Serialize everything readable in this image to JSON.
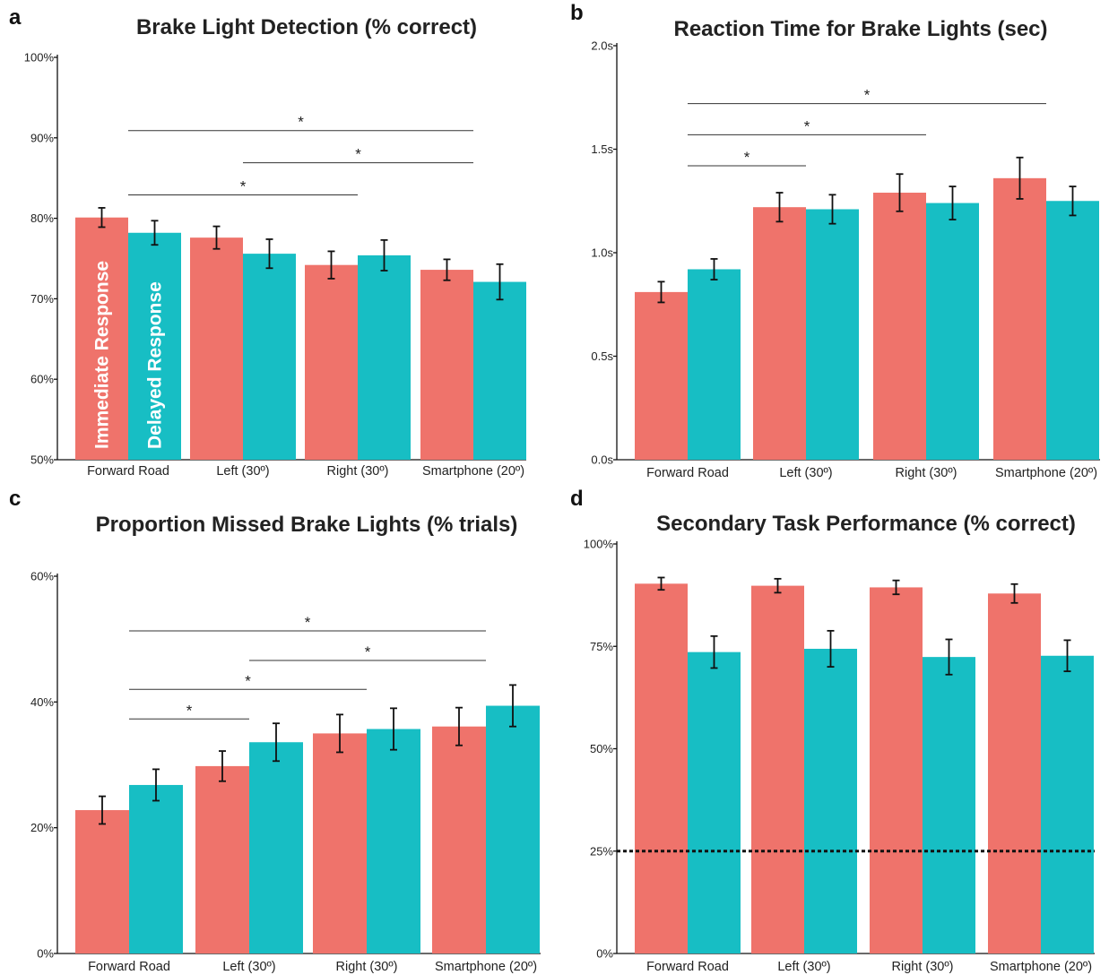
{
  "colors": {
    "immediate": "#ef736b",
    "delayed": "#17bec4"
  },
  "chart_data": [
    {
      "id": "a",
      "type": "bar",
      "panel_letter": "a",
      "title": "Brake Light Detection (% correct)",
      "categories": [
        "Forward Road",
        "Left (30º)",
        "Right (30º)",
        "Smartphone (20º)"
      ],
      "series": [
        {
          "name": "Immediate Response",
          "values": [
            80.1,
            77.6,
            74.2,
            73.6
          ],
          "error": [
            1.2,
            1.4,
            1.7,
            1.3
          ]
        },
        {
          "name": "Delayed Response",
          "values": [
            78.2,
            75.6,
            75.4,
            72.1
          ],
          "error": [
            1.5,
            1.8,
            1.9,
            2.2
          ]
        }
      ],
      "ylim": [
        50,
        100
      ],
      "yticks": [
        50,
        60,
        70,
        80,
        90,
        100
      ],
      "ytick_labels": [
        "50%",
        "60%",
        "70%",
        "80%",
        "90%",
        "100%"
      ],
      "significance": [
        {
          "from": 0,
          "to": 3,
          "y": 90.9,
          "label": "*"
        },
        {
          "from": 1,
          "to": 3,
          "y": 86.9,
          "label": "*"
        },
        {
          "from": 0,
          "to": 2,
          "y": 82.9,
          "label": "*"
        }
      ],
      "bar_labels_on_first_group": true
    },
    {
      "id": "b",
      "type": "bar",
      "panel_letter": "b",
      "title": "Reaction Time for Brake Lights (sec)",
      "categories": [
        "Forward Road",
        "Left (30º)",
        "Right (30º)",
        "Smartphone (20º)"
      ],
      "series": [
        {
          "name": "Immediate Response",
          "values": [
            0.81,
            1.22,
            1.29,
            1.36
          ],
          "error": [
            0.05,
            0.07,
            0.09,
            0.1
          ]
        },
        {
          "name": "Delayed Response",
          "values": [
            0.92,
            1.21,
            1.24,
            1.25
          ],
          "error": [
            0.05,
            0.07,
            0.08,
            0.07
          ]
        }
      ],
      "ylim": [
        0,
        2
      ],
      "yticks": [
        0,
        0.5,
        1,
        1.5,
        2
      ],
      "ytick_labels": [
        "0.0s",
        "0.5s",
        "1.0s",
        "1.5s",
        "2.0s"
      ],
      "significance": [
        {
          "from": 0,
          "to": 3,
          "y": 1.72,
          "label": "*"
        },
        {
          "from": 0,
          "to": 2,
          "y": 1.57,
          "label": "*"
        },
        {
          "from": 0,
          "to": 1,
          "y": 1.42,
          "label": "*"
        }
      ]
    },
    {
      "id": "c",
      "type": "bar",
      "panel_letter": "c",
      "title": "Proportion Missed Brake Lights (% trials)",
      "categories": [
        "Forward Road",
        "Left (30º)",
        "Right (30º)",
        "Smartphone (20º)"
      ],
      "series": [
        {
          "name": "Immediate Response",
          "values": [
            22.8,
            29.8,
            35.0,
            36.1
          ],
          "error": [
            2.2,
            2.4,
            3.0,
            3.0
          ]
        },
        {
          "name": "Delayed Response",
          "values": [
            26.8,
            33.6,
            35.7,
            39.4
          ],
          "error": [
            2.5,
            3.0,
            3.3,
            3.3
          ]
        }
      ],
      "ylim": [
        0,
        60
      ],
      "yticks": [
        0,
        20,
        40,
        60
      ],
      "ytick_labels": [
        "0%",
        "20%",
        "40%",
        "60%"
      ],
      "significance": [
        {
          "from": 0,
          "to": 3,
          "y": 51.3,
          "label": "*"
        },
        {
          "from": 1,
          "to": 3,
          "y": 46.6,
          "label": "*"
        },
        {
          "from": 0,
          "to": 2,
          "y": 42.0,
          "label": "*"
        },
        {
          "from": 0,
          "to": 1,
          "y": 37.3,
          "label": "*"
        }
      ]
    },
    {
      "id": "d",
      "type": "bar",
      "panel_letter": "d",
      "title": "Secondary Task Performance (% correct)",
      "categories": [
        "Forward Road",
        "Left (30º)",
        "Right (30º)",
        "Smartphone (20º)"
      ],
      "series": [
        {
          "name": "Immediate Response",
          "values": [
            90.3,
            89.8,
            89.4,
            87.9
          ],
          "error": [
            1.5,
            1.7,
            1.7,
            2.3
          ]
        },
        {
          "name": "Delayed Response",
          "values": [
            73.6,
            74.4,
            72.4,
            72.7
          ],
          "error": [
            3.9,
            4.4,
            4.3,
            3.8
          ]
        }
      ],
      "ylim": [
        0,
        100
      ],
      "yticks": [
        0,
        25,
        50,
        75,
        100
      ],
      "ytick_labels": [
        "0%",
        "25%",
        "50%",
        "75%",
        "100%"
      ],
      "reference_line": {
        "y": 25,
        "style": "dotted"
      },
      "significance": []
    }
  ]
}
